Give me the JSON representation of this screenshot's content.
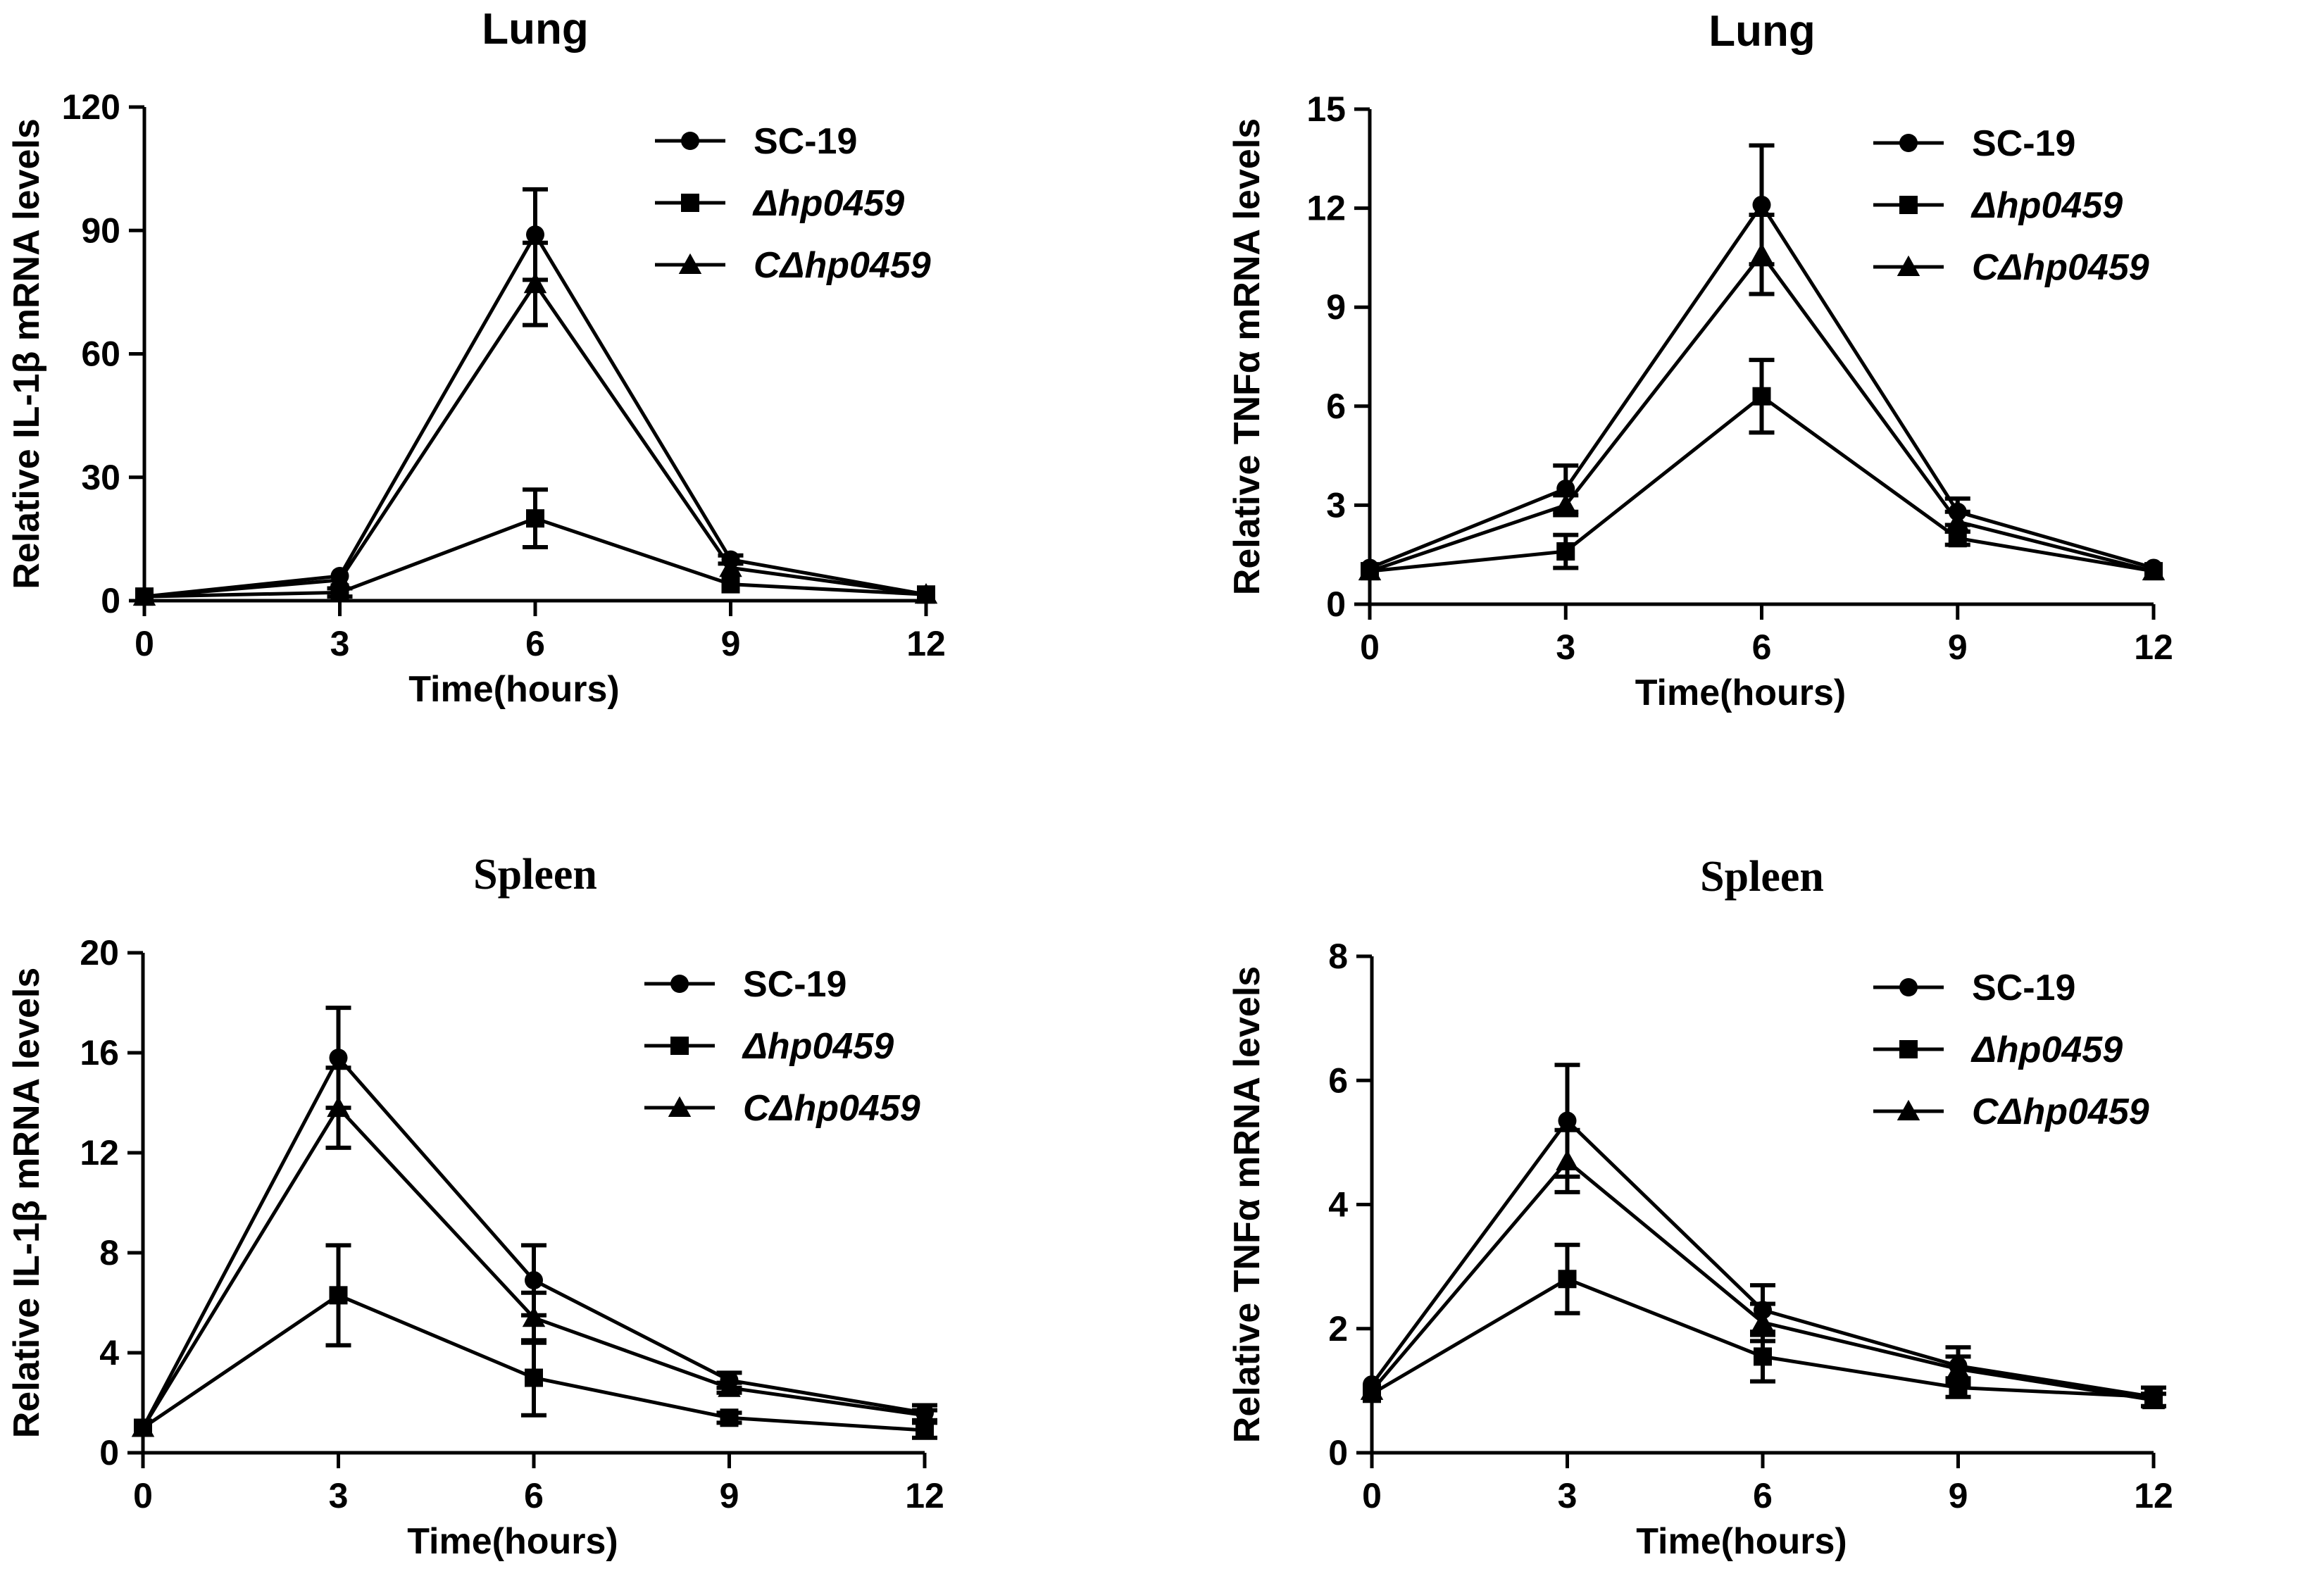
{
  "chart_data": [
    {
      "type": "line",
      "title": "Lung",
      "title_font": "sans",
      "xlabel": "Time(hours)",
      "ylabel": "Relative IL-1β mRNA levels",
      "x": [
        0,
        3,
        6,
        9,
        12
      ],
      "xticks": [
        "0",
        "3",
        "6",
        "9",
        "12"
      ],
      "xlim": [
        0,
        12
      ],
      "ylim": [
        0,
        120
      ],
      "yticks": [
        "0",
        "30",
        "60",
        "90",
        "120"
      ],
      "legend_position": "top-right",
      "series": [
        {
          "name": "SC-19",
          "marker": "circle",
          "italic": false,
          "values": [
            1,
            6,
            89,
            10,
            1.5
          ],
          "errors": [
            0,
            0,
            11,
            1,
            0
          ]
        },
        {
          "name": "Δhp0459",
          "marker": "square",
          "italic": true,
          "values": [
            1,
            2,
            20,
            4,
            1.5
          ],
          "errors": [
            0,
            1,
            7,
            0,
            0
          ]
        },
        {
          "name": "CΔhp0459",
          "marker": "triangle",
          "italic": true,
          "values": [
            1,
            5,
            77,
            8,
            1.5
          ],
          "errors": [
            0,
            0,
            10,
            0,
            0
          ]
        }
      ]
    },
    {
      "type": "line",
      "title": "Lung",
      "title_font": "sans",
      "xlabel": "Time(hours)",
      "ylabel": "Relative TNFα mRNA levels",
      "x": [
        0,
        3,
        6,
        9,
        12
      ],
      "xticks": [
        "0",
        "3",
        "6",
        "9",
        "12"
      ],
      "xlim": [
        0,
        12
      ],
      "ylim": [
        0,
        15
      ],
      "yticks": [
        "0",
        "3",
        "6",
        "9",
        "12",
        "15"
      ],
      "legend_position": "top-right",
      "series": [
        {
          "name": "SC-19",
          "marker": "circle",
          "italic": false,
          "values": [
            1.1,
            3.5,
            12.1,
            2.8,
            1.1
          ],
          "errors": [
            0,
            0.7,
            1.8,
            0.4,
            0
          ]
        },
        {
          "name": "Δhp0459",
          "marker": "square",
          "italic": true,
          "values": [
            1.0,
            1.6,
            6.3,
            2.0,
            1.0
          ],
          "errors": [
            0,
            0.5,
            1.1,
            0.2,
            0
          ]
        },
        {
          "name": "CΔhp0459",
          "marker": "triangle",
          "italic": true,
          "values": [
            1.0,
            3.0,
            10.6,
            2.5,
            1.0
          ],
          "errors": [
            0,
            0.3,
            1.2,
            0.3,
            0
          ]
        }
      ]
    },
    {
      "type": "line",
      "title": "Spleen",
      "title_font": "serif",
      "xlabel": "Time(hours)",
      "ylabel": "Relative IL-1β mRNA levels",
      "x": [
        0,
        3,
        6,
        9,
        12
      ],
      "xticks": [
        "0",
        "3",
        "6",
        "9",
        "12"
      ],
      "xlim": [
        0,
        12
      ],
      "ylim": [
        0,
        20
      ],
      "yticks": [
        "0",
        "4",
        "8",
        "12",
        "16",
        "20"
      ],
      "legend_position": "top-right",
      "series": [
        {
          "name": "SC-19",
          "marker": "circle",
          "italic": false,
          "values": [
            1,
            15.8,
            6.9,
            2.9,
            1.6
          ],
          "errors": [
            0,
            2.0,
            1.4,
            0.3,
            0.3
          ]
        },
        {
          "name": "Δhp0459",
          "marker": "square",
          "italic": true,
          "values": [
            1,
            6.3,
            3.0,
            1.4,
            0.9
          ],
          "errors": [
            0,
            2.0,
            1.5,
            0.2,
            0.3
          ]
        },
        {
          "name": "CΔhp0459",
          "marker": "triangle",
          "italic": true,
          "values": [
            1,
            13.8,
            5.4,
            2.6,
            1.5
          ],
          "errors": [
            0,
            1.6,
            1.0,
            0.2,
            0.2
          ]
        }
      ]
    },
    {
      "type": "line",
      "title": "Spleen",
      "title_font": "serif",
      "xlabel": "Time(hours)",
      "ylabel": "Relative TNFα mRNA levels",
      "x": [
        0,
        3,
        6,
        9,
        12
      ],
      "xticks": [
        "0",
        "3",
        "6",
        "9",
        "12"
      ],
      "xlim": [
        0,
        12
      ],
      "ylim": [
        0,
        8
      ],
      "yticks": [
        "0",
        "2",
        "4",
        "6",
        "8"
      ],
      "legend_position": "top-right",
      "series": [
        {
          "name": "SC-19",
          "marker": "circle",
          "italic": false,
          "values": [
            1.1,
            5.35,
            2.3,
            1.4,
            0.9
          ],
          "errors": [
            0,
            0.9,
            0.4,
            0.3,
            0.15
          ]
        },
        {
          "name": "Δhp0459",
          "marker": "square",
          "italic": true,
          "values": [
            0.95,
            2.8,
            1.55,
            1.05,
            0.9
          ],
          "errors": [
            0,
            0.55,
            0.4,
            0.15,
            0.15
          ]
        },
        {
          "name": "CΔhp0459",
          "marker": "triangle",
          "italic": true,
          "values": [
            1.0,
            4.7,
            2.1,
            1.35,
            0.85
          ],
          "errors": [
            0,
            0.5,
            0.3,
            0.2,
            0.1
          ]
        }
      ]
    }
  ]
}
